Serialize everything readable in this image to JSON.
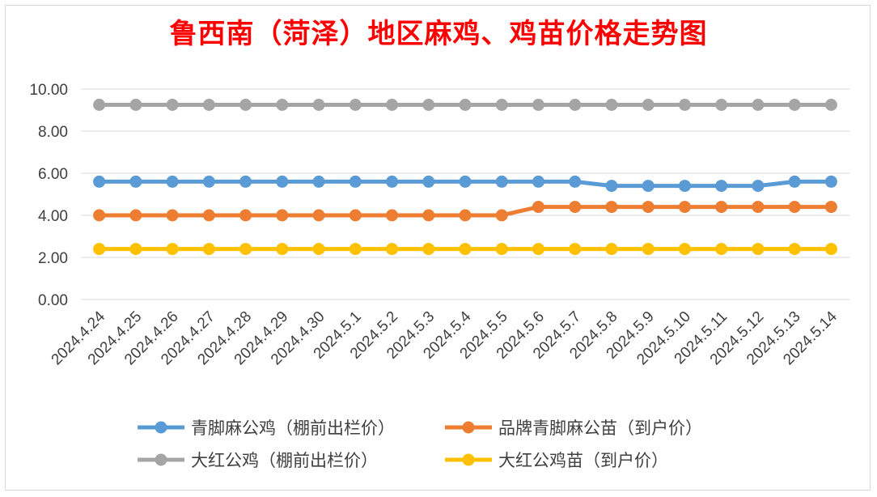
{
  "chart_data": {
    "type": "line",
    "title": "鲁西南（菏泽）地区麻鸡、鸡苗价格走势图",
    "categories": [
      "2024.4.24",
      "2024.4.25",
      "2024.4.26",
      "2024.4.27",
      "2024.4.28",
      "2024.4.29",
      "2024.4.30",
      "2024.5.1",
      "2024.5.2",
      "2024.5.3",
      "2024.5.4",
      "2024.5.5",
      "2024.5.6",
      "2024.5.7",
      "2024.5.8",
      "2024.5.9",
      "2024.5.10",
      "2024.5.11",
      "2024.5.12",
      "2024.5.13",
      "2024.5.14"
    ],
    "y_ticks": [
      "0.00",
      "2.00",
      "4.00",
      "6.00",
      "8.00",
      "10.00"
    ],
    "ylim": [
      0,
      10
    ],
    "grid": true,
    "legend_position": "bottom",
    "series": [
      {
        "name": "青脚麻公鸡（棚前出栏价）",
        "color": "#5b9bd5",
        "values": [
          5.6,
          5.6,
          5.6,
          5.6,
          5.6,
          5.6,
          5.6,
          5.6,
          5.6,
          5.6,
          5.6,
          5.6,
          5.6,
          5.6,
          5.4,
          5.4,
          5.4,
          5.4,
          5.4,
          5.6,
          5.6
        ]
      },
      {
        "name": "品牌青脚麻公苗（到户价）",
        "color": "#ed7d31",
        "values": [
          4.0,
          4.0,
          4.0,
          4.0,
          4.0,
          4.0,
          4.0,
          4.0,
          4.0,
          4.0,
          4.0,
          4.0,
          4.4,
          4.4,
          4.4,
          4.4,
          4.4,
          4.4,
          4.4,
          4.4,
          4.4
        ]
      },
      {
        "name": "大红公鸡（棚前出栏价）",
        "color": "#a5a5a5",
        "values": [
          9.25,
          9.25,
          9.25,
          9.25,
          9.25,
          9.25,
          9.25,
          9.25,
          9.25,
          9.25,
          9.25,
          9.25,
          9.25,
          9.25,
          9.25,
          9.25,
          9.25,
          9.25,
          9.25,
          9.25,
          9.25
        ]
      },
      {
        "name": "大红公鸡苗（到户价）",
        "color": "#ffc000",
        "values": [
          2.4,
          2.4,
          2.4,
          2.4,
          2.4,
          2.4,
          2.4,
          2.4,
          2.4,
          2.4,
          2.4,
          2.4,
          2.4,
          2.4,
          2.4,
          2.4,
          2.4,
          2.4,
          2.4,
          2.4,
          2.4
        ]
      }
    ]
  }
}
